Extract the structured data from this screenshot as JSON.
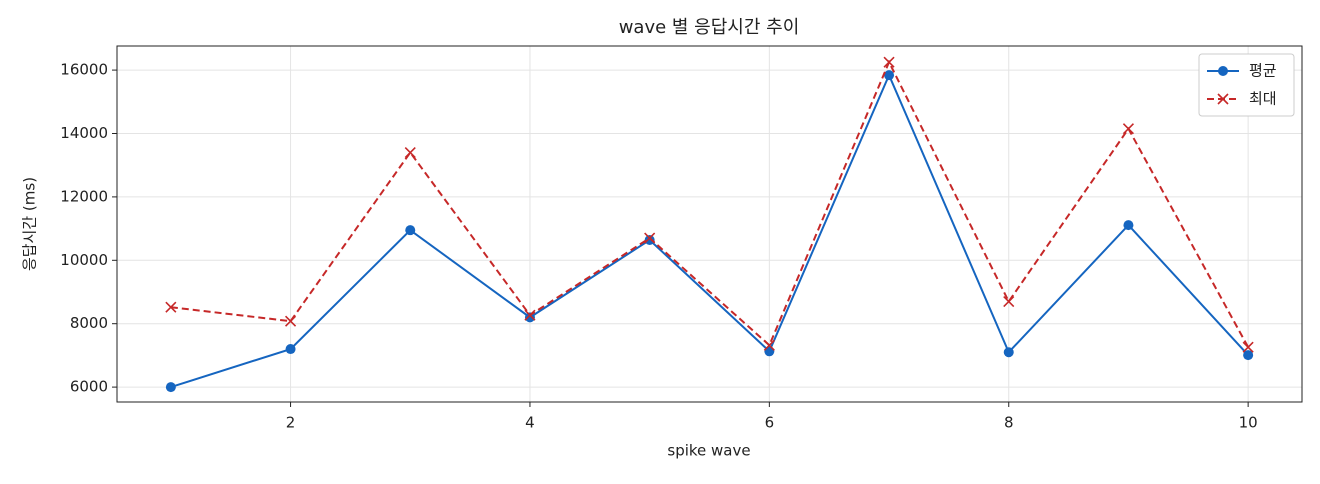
{
  "chart_data": {
    "type": "line",
    "title": "wave 별 응답시간 추이",
    "x_label": "spike wave",
    "y_label": "응답시간 (ms)",
    "x": [
      1,
      2,
      3,
      4,
      5,
      6,
      7,
      8,
      9,
      10
    ],
    "series": [
      {
        "name": "평균",
        "color": "#1565c0",
        "marker": "circle",
        "dash": "solid",
        "values": [
          6000,
          7200,
          10950,
          8200,
          10640,
          7130,
          15840,
          7100,
          11110,
          7010
        ]
      },
      {
        "name": "최대",
        "color": "#c62828",
        "marker": "x",
        "dash": "dashed",
        "values": [
          8520,
          8080,
          13400,
          8270,
          10700,
          7320,
          16250,
          8700,
          14150,
          7260
        ]
      }
    ],
    "xlim": [
      0.55,
      10.45
    ],
    "xticks": [
      2,
      4,
      6,
      8,
      10
    ],
    "ylim": [
      5530,
      16760
    ],
    "yticks": [
      6000,
      8000,
      10000,
      12000,
      14000,
      16000
    ],
    "grid": true,
    "legend": "upper right"
  }
}
